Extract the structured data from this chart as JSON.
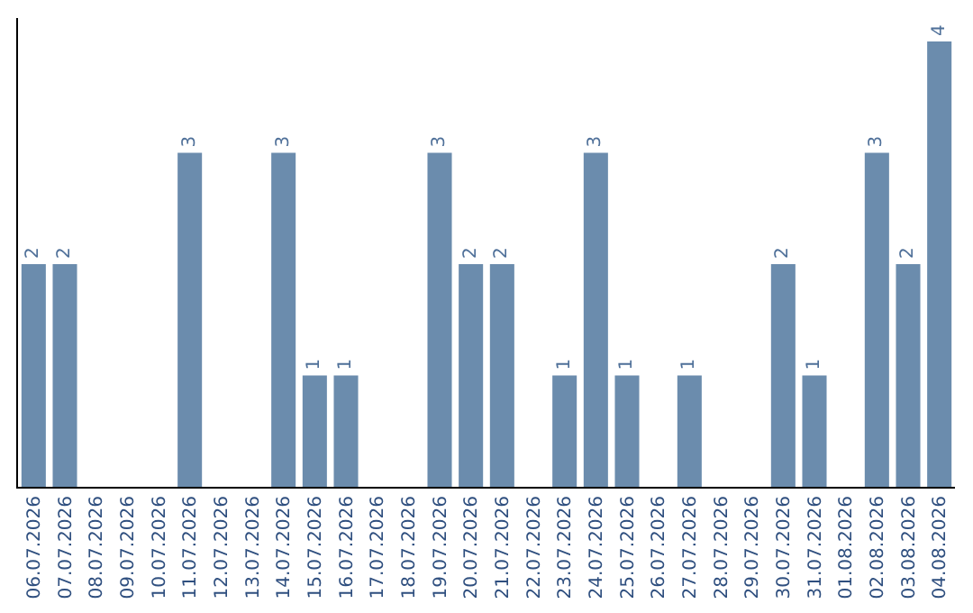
{
  "chart_data": {
    "type": "bar",
    "categories": [
      "06.07.2026",
      "07.07.2026",
      "08.07.2026",
      "09.07.2026",
      "10.07.2026",
      "11.07.2026",
      "12.07.2026",
      "13.07.2026",
      "14.07.2026",
      "15.07.2026",
      "16.07.2026",
      "17.07.2026",
      "18.07.2026",
      "19.07.2026",
      "20.07.2026",
      "21.07.2026",
      "22.07.2026",
      "23.07.2026",
      "24.07.2026",
      "25.07.2026",
      "26.07.2026",
      "27.07.2026",
      "28.07.2026",
      "29.07.2026",
      "30.07.2026",
      "31.07.2026",
      "01.08.2026",
      "02.08.2026",
      "03.08.2026",
      "04.08.2026"
    ],
    "values": [
      2,
      2,
      0,
      0,
      0,
      3,
      0,
      0,
      3,
      1,
      1,
      0,
      0,
      3,
      2,
      2,
      0,
      1,
      3,
      1,
      0,
      1,
      0,
      0,
      2,
      1,
      0,
      3,
      2,
      4
    ],
    "value_labels": [
      "2",
      "2",
      null,
      null,
      null,
      "3",
      null,
      null,
      "3",
      "1",
      "1",
      null,
      null,
      "3",
      "2",
      "2",
      null,
      "1",
      "3",
      "1",
      null,
      "1",
      null,
      null,
      "2",
      "1",
      null,
      "3",
      "2",
      "4"
    ],
    "color": "#6b8cad",
    "grid": false,
    "tick_labels": "x"
  }
}
